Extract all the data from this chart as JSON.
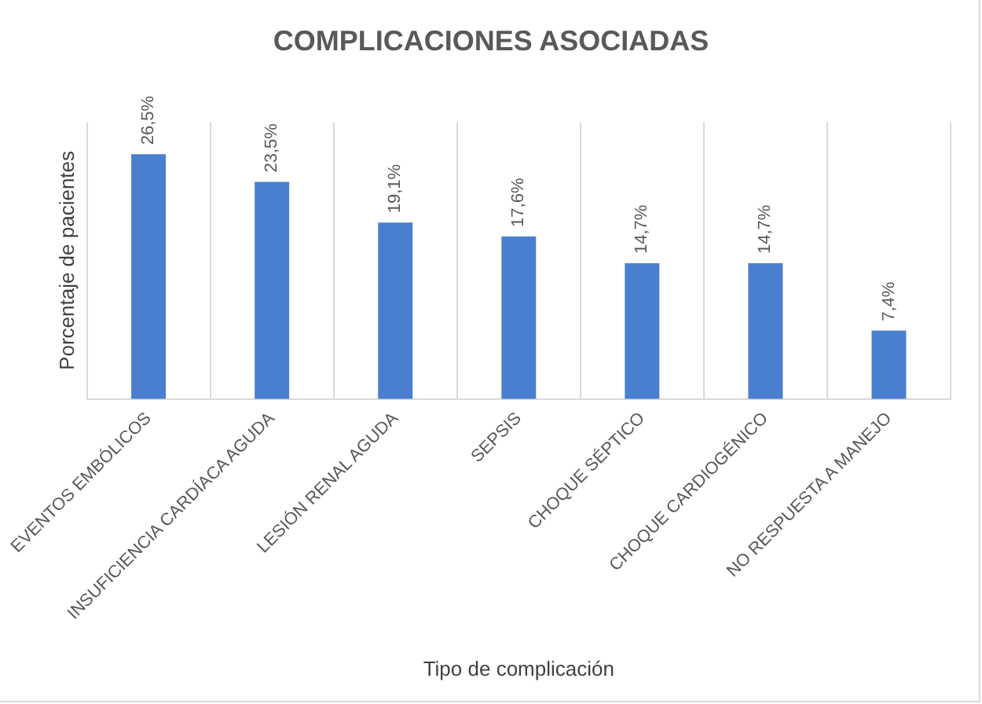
{
  "chart_data": {
    "type": "bar",
    "title": "COMPLICACIONES ASOCIADAS",
    "xlabel": "Tipo de complicación",
    "ylabel": "Porcentaje de pacientes",
    "categories": [
      "EVENTOS EMBÓLICOS",
      "INSUFICIENCIA CARDÍACA AGUDA",
      "LESIÓN RENAL AGUDA",
      "SEPSIS",
      "CHOQUE SÉPTICO",
      "CHOQUE CARDIOGÉNICO",
      "NO RESPUESTA A MANEJO"
    ],
    "values": [
      26.5,
      23.5,
      19.1,
      17.6,
      14.7,
      14.7,
      7.4
    ],
    "value_labels": [
      "26,5%",
      "23,5%",
      "19,1%",
      "17,6%",
      "14,7%",
      "14,7%",
      "7,4%"
    ],
    "color": "#4a7fd0",
    "grid": "x",
    "legend": false
  }
}
